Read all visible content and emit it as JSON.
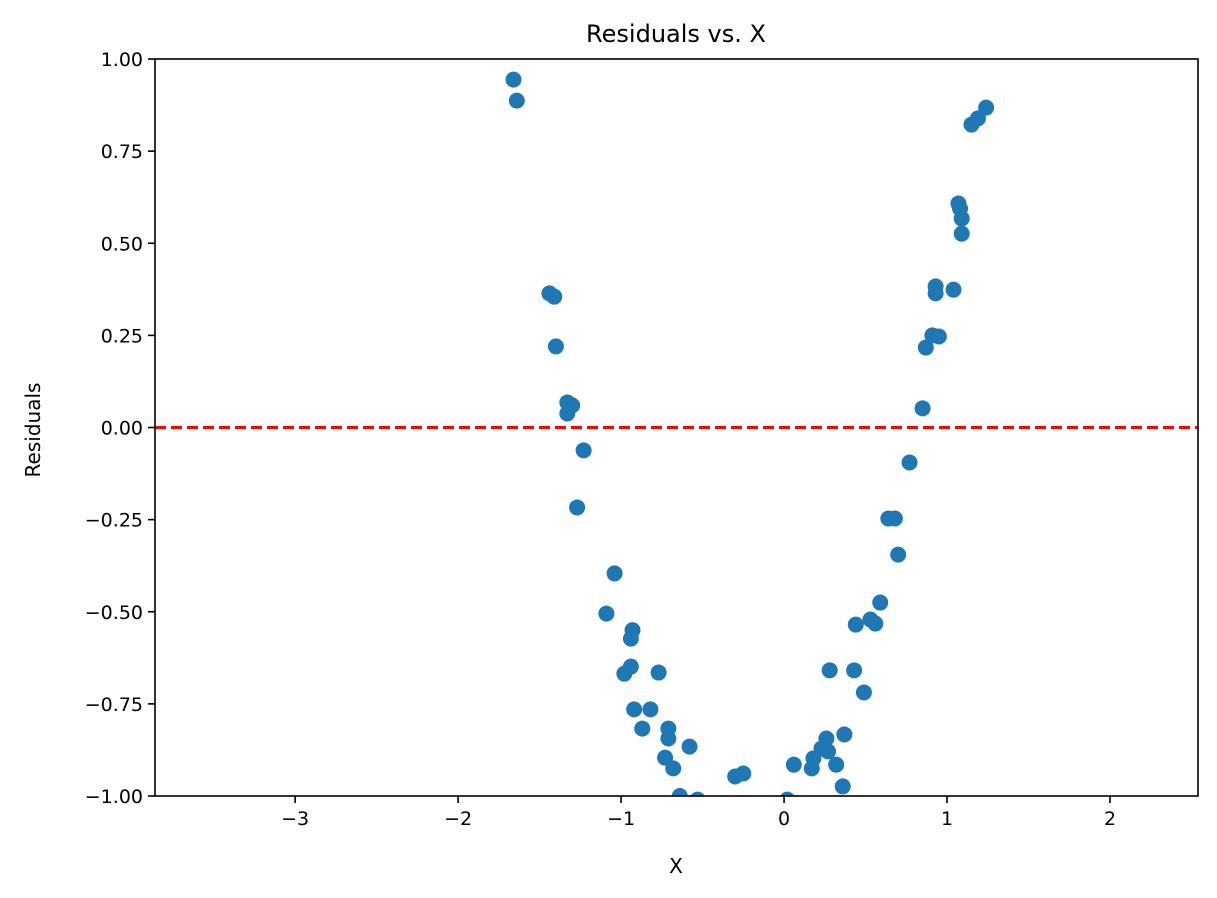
{
  "chart_data": {
    "type": "scatter",
    "title": "Residuals vs. X",
    "xlabel": "X",
    "ylabel": "Residuals",
    "xlim": [
      -3.86,
      2.54
    ],
    "ylim": [
      -1.0,
      1.0
    ],
    "grid": false,
    "xticks": [
      -3,
      -2,
      -1,
      0,
      1,
      2
    ],
    "xtick_labels": [
      "−3",
      "−2",
      "−1",
      "0",
      "1",
      "2"
    ],
    "yticks": [
      1.0,
      0.75,
      0.5,
      0.25,
      0.0,
      -0.25,
      -0.5,
      -0.75,
      -1.0
    ],
    "ytick_labels": [
      "1.00",
      "0.75",
      "0.50",
      "0.25",
      "0.00",
      "−0.25",
      "−0.50",
      "−0.75",
      "−1.00"
    ],
    "reference_line": {
      "y": 0,
      "color": "#ff0000",
      "style": "dashed"
    },
    "marker_color": "#1f77b4",
    "points": [
      [
        -1.66,
        0.944
      ],
      [
        -1.64,
        0.887
      ],
      [
        -1.44,
        0.364
      ],
      [
        -1.41,
        0.355
      ],
      [
        -1.4,
        0.22
      ],
      [
        -1.33,
        0.068
      ],
      [
        -1.3,
        0.06
      ],
      [
        -1.33,
        0.038
      ],
      [
        -1.23,
        -0.062
      ],
      [
        -1.27,
        -0.217
      ],
      [
        -1.04,
        -0.396
      ],
      [
        -1.09,
        -0.505
      ],
      [
        -0.93,
        -0.55
      ],
      [
        -0.94,
        -0.573
      ],
      [
        -0.94,
        -0.649
      ],
      [
        -0.98,
        -0.668
      ],
      [
        -0.77,
        -0.665
      ],
      [
        -0.92,
        -0.765
      ],
      [
        -0.82,
        -0.765
      ],
      [
        -0.87,
        -0.817
      ],
      [
        -0.71,
        -0.817
      ],
      [
        -0.71,
        -0.844
      ],
      [
        -0.73,
        -0.896
      ],
      [
        -0.68,
        -0.925
      ],
      [
        -0.58,
        -0.866
      ],
      [
        -0.64,
        -1.0
      ],
      [
        -0.53,
        -1.01
      ],
      [
        -0.3,
        -0.947
      ],
      [
        -0.25,
        -0.939
      ],
      [
        0.02,
        -1.01
      ],
      [
        0.06,
        -0.915
      ],
      [
        0.17,
        -0.925
      ],
      [
        0.18,
        -0.898
      ],
      [
        0.23,
        -0.871
      ],
      [
        0.26,
        -0.844
      ],
      [
        0.27,
        -0.879
      ],
      [
        0.32,
        -0.915
      ],
      [
        0.28,
        -0.659
      ],
      [
        0.36,
        -0.974
      ],
      [
        0.37,
        -0.833
      ],
      [
        0.43,
        -0.659
      ],
      [
        0.44,
        -0.535
      ],
      [
        0.49,
        -0.719
      ],
      [
        0.53,
        -0.521
      ],
      [
        0.56,
        -0.532
      ],
      [
        0.59,
        -0.475
      ],
      [
        0.64,
        -0.247
      ],
      [
        0.68,
        -0.247
      ],
      [
        0.7,
        -0.345
      ],
      [
        0.77,
        -0.095
      ],
      [
        0.85,
        0.052
      ],
      [
        0.87,
        0.217
      ],
      [
        0.91,
        0.25
      ],
      [
        0.95,
        0.247
      ],
      [
        0.93,
        0.383
      ],
      [
        0.93,
        0.364
      ],
      [
        1.04,
        0.374
      ],
      [
        1.07,
        0.608
      ],
      [
        1.08,
        0.594
      ],
      [
        1.09,
        0.567
      ],
      [
        1.09,
        0.526
      ],
      [
        1.15,
        0.822
      ],
      [
        1.19,
        0.839
      ],
      [
        1.24,
        0.868
      ]
    ]
  }
}
